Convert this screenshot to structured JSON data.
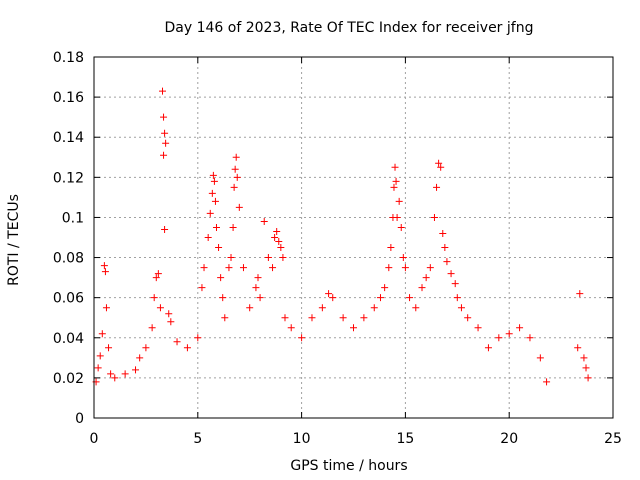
{
  "chart_data": {
    "type": "scatter",
    "title": "Day 146 of 2023, Rate Of TEC Index for receiver jfng",
    "xlabel": "GPS time / hours",
    "ylabel": "ROTI / TECUs",
    "xlim": [
      0,
      25
    ],
    "ylim": [
      0,
      0.18
    ],
    "xticks": [
      "0",
      "5",
      "10",
      "15",
      "20",
      "25"
    ],
    "yticks": [
      "0",
      "0.02",
      "0.04",
      "0.06",
      "0.08",
      "0.1",
      "0.12",
      "0.14",
      "0.16",
      "0.18"
    ],
    "grid": true,
    "marker": "plus",
    "color": "#ff0000",
    "series": [
      {
        "points": [
          [
            0.1,
            0.018
          ],
          [
            0.2,
            0.025
          ],
          [
            0.3,
            0.031
          ],
          [
            0.4,
            0.042
          ],
          [
            0.5,
            0.076
          ],
          [
            0.55,
            0.073
          ],
          [
            0.6,
            0.055
          ],
          [
            0.7,
            0.035
          ],
          [
            0.8,
            0.022
          ],
          [
            1.0,
            0.02
          ],
          [
            1.5,
            0.022
          ],
          [
            2.0,
            0.024
          ],
          [
            2.2,
            0.03
          ],
          [
            2.5,
            0.035
          ],
          [
            2.8,
            0.045
          ],
          [
            2.9,
            0.06
          ],
          [
            3.0,
            0.07
          ],
          [
            3.1,
            0.072
          ],
          [
            3.2,
            0.055
          ],
          [
            3.3,
            0.163
          ],
          [
            3.35,
            0.15
          ],
          [
            3.4,
            0.142
          ],
          [
            3.45,
            0.137
          ],
          [
            3.35,
            0.131
          ],
          [
            3.4,
            0.094
          ],
          [
            3.6,
            0.052
          ],
          [
            3.7,
            0.048
          ],
          [
            4.0,
            0.038
          ],
          [
            4.5,
            0.035
          ],
          [
            5.0,
            0.04
          ],
          [
            5.2,
            0.065
          ],
          [
            5.3,
            0.075
          ],
          [
            5.5,
            0.09
          ],
          [
            5.6,
            0.102
          ],
          [
            5.7,
            0.112
          ],
          [
            5.75,
            0.121
          ],
          [
            5.8,
            0.118
          ],
          [
            5.85,
            0.108
          ],
          [
            5.9,
            0.095
          ],
          [
            6.0,
            0.085
          ],
          [
            6.1,
            0.07
          ],
          [
            6.2,
            0.06
          ],
          [
            6.3,
            0.05
          ],
          [
            6.5,
            0.075
          ],
          [
            6.6,
            0.08
          ],
          [
            6.7,
            0.095
          ],
          [
            6.75,
            0.115
          ],
          [
            6.8,
            0.124
          ],
          [
            6.85,
            0.13
          ],
          [
            6.9,
            0.12
          ],
          [
            7.0,
            0.105
          ],
          [
            7.2,
            0.075
          ],
          [
            7.5,
            0.055
          ],
          [
            7.8,
            0.065
          ],
          [
            7.9,
            0.07
          ],
          [
            8.0,
            0.06
          ],
          [
            8.2,
            0.098
          ],
          [
            8.4,
            0.08
          ],
          [
            8.6,
            0.075
          ],
          [
            8.7,
            0.09
          ],
          [
            8.8,
            0.093
          ],
          [
            8.9,
            0.088
          ],
          [
            9.0,
            0.085
          ],
          [
            9.1,
            0.08
          ],
          [
            9.2,
            0.05
          ],
          [
            9.5,
            0.045
          ],
          [
            10.0,
            0.04
          ],
          [
            10.5,
            0.05
          ],
          [
            11.0,
            0.055
          ],
          [
            11.3,
            0.062
          ],
          [
            11.5,
            0.06
          ],
          [
            12.0,
            0.05
          ],
          [
            12.5,
            0.045
          ],
          [
            13.0,
            0.05
          ],
          [
            13.5,
            0.055
          ],
          [
            13.8,
            0.06
          ],
          [
            14.0,
            0.065
          ],
          [
            14.2,
            0.075
          ],
          [
            14.3,
            0.085
          ],
          [
            14.4,
            0.1
          ],
          [
            14.45,
            0.115
          ],
          [
            14.5,
            0.125
          ],
          [
            14.55,
            0.118
          ],
          [
            14.6,
            0.1
          ],
          [
            14.7,
            0.108
          ],
          [
            14.8,
            0.095
          ],
          [
            14.9,
            0.08
          ],
          [
            15.0,
            0.075
          ],
          [
            15.2,
            0.06
          ],
          [
            15.5,
            0.055
          ],
          [
            15.8,
            0.065
          ],
          [
            16.0,
            0.07
          ],
          [
            16.2,
            0.075
          ],
          [
            16.4,
            0.1
          ],
          [
            16.5,
            0.115
          ],
          [
            16.6,
            0.127
          ],
          [
            16.7,
            0.125
          ],
          [
            16.8,
            0.092
          ],
          [
            16.9,
            0.085
          ],
          [
            17.0,
            0.078
          ],
          [
            17.2,
            0.072
          ],
          [
            17.4,
            0.067
          ],
          [
            17.5,
            0.06
          ],
          [
            17.7,
            0.055
          ],
          [
            18.0,
            0.05
          ],
          [
            18.5,
            0.045
          ],
          [
            19.0,
            0.035
          ],
          [
            19.5,
            0.04
          ],
          [
            20.0,
            0.042
          ],
          [
            20.5,
            0.045
          ],
          [
            21.0,
            0.04
          ],
          [
            21.5,
            0.03
          ],
          [
            21.8,
            0.018
          ],
          [
            23.3,
            0.035
          ],
          [
            23.4,
            0.062
          ],
          [
            23.6,
            0.03
          ],
          [
            23.7,
            0.025
          ],
          [
            23.8,
            0.02
          ]
        ]
      }
    ]
  }
}
